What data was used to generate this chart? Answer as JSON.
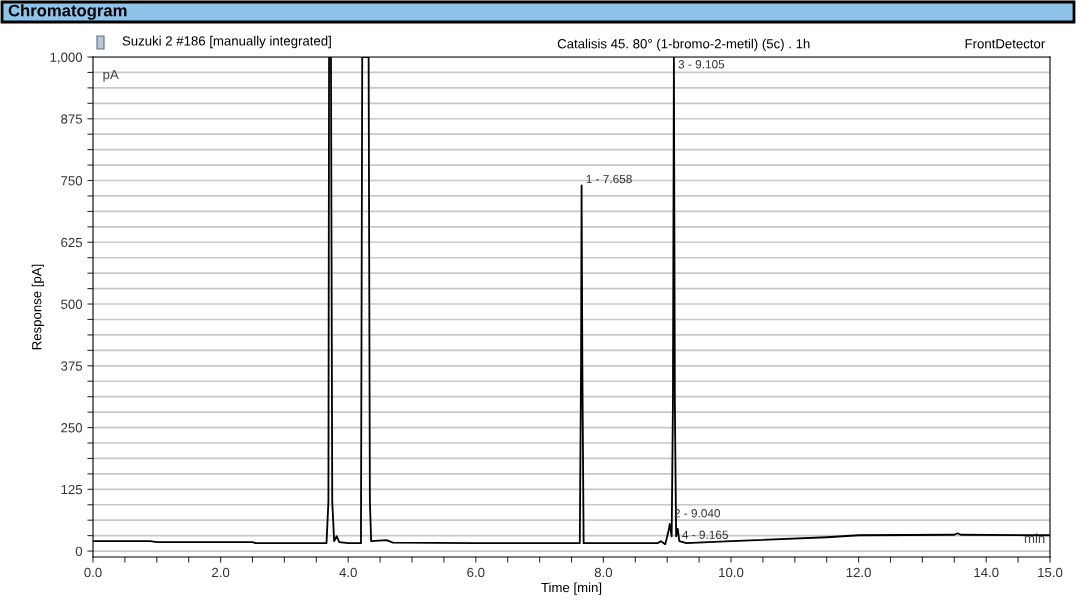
{
  "chart_data": {
    "type": "line",
    "title": "Chromatogram",
    "subtitle": "Suzuki 2 #186 [manually integrated]",
    "xlabel": "Time [min]",
    "ylabel": "Response [pA]",
    "annotations": [
      "Catalisis 45. 80° (1-bromo-2-metil) (5c) . 1h",
      "FrontDetector",
      "pA",
      "min",
      {
        "text": "1 - 7.658",
        "x": 7.658,
        "y": 740
      },
      {
        "text": "2 - 9.040",
        "x": 9.04,
        "y": 55
      },
      {
        "text": "3 - 9.105",
        "x": 9.105,
        "y": 1000
      },
      {
        "text": "4 - 9.165",
        "x": 9.165,
        "y": 45
      }
    ],
    "series": [
      {
        "color": "#000000",
        "x": [
          0,
          0.9,
          1.0,
          2.5,
          2.55,
          3.66,
          3.69,
          3.7,
          3.73,
          3.75,
          3.78,
          3.82,
          3.86,
          4.0,
          4.2,
          4.22,
          4.32,
          4.34,
          4.36,
          4.6,
          4.7,
          6.0,
          7.63,
          7.65,
          7.658,
          7.67,
          7.69,
          8.85,
          8.9,
          8.97,
          9.02,
          9.04,
          9.07,
          9.09,
          9.105,
          9.12,
          9.14,
          9.165,
          9.19,
          9.3,
          10.0,
          11.5,
          12.0,
          13.5,
          13.55,
          13.6,
          15.0
        ],
        "values": [
          20,
          20,
          18,
          18,
          16,
          16,
          100,
          1000,
          1000,
          100,
          20,
          30,
          18,
          16,
          16,
          1000,
          1000,
          100,
          20,
          22,
          17,
          16,
          16,
          380,
          740,
          380,
          16,
          16,
          20,
          14,
          40,
          55,
          30,
          300,
          1000,
          300,
          30,
          45,
          20,
          16,
          20,
          28,
          32,
          33,
          36,
          33,
          32
        ]
      }
    ],
    "xlim": [
      0,
      15
    ],
    "ylim": [
      -12,
      1000
    ],
    "xticks": [
      {
        "value": 0,
        "label": "0.0"
      },
      {
        "value": 0.5,
        "label": null
      },
      {
        "value": 1,
        "label": null
      },
      {
        "value": 1.5,
        "label": null
      },
      {
        "value": 2,
        "label": "2.0"
      },
      {
        "value": 2.5,
        "label": null
      },
      {
        "value": 3,
        "label": null
      },
      {
        "value": 3.5,
        "label": null
      },
      {
        "value": 4,
        "label": "4.0"
      },
      {
        "value": 4.5,
        "label": null
      },
      {
        "value": 5,
        "label": null
      },
      {
        "value": 5.5,
        "label": null
      },
      {
        "value": 6,
        "label": "6.0"
      },
      {
        "value": 6.5,
        "label": null
      },
      {
        "value": 7,
        "label": null
      },
      {
        "value": 7.5,
        "label": null
      },
      {
        "value": 8,
        "label": "8.0"
      },
      {
        "value": 8.5,
        "label": null
      },
      {
        "value": 9,
        "label": null
      },
      {
        "value": 9.5,
        "label": null
      },
      {
        "value": 10,
        "label": "10.0"
      },
      {
        "value": 10.5,
        "label": null
      },
      {
        "value": 11,
        "label": null
      },
      {
        "value": 11.5,
        "label": null
      },
      {
        "value": 12,
        "label": "12.0"
      },
      {
        "value": 12.5,
        "label": null
      },
      {
        "value": 13,
        "label": null
      },
      {
        "value": 13.5,
        "label": null
      },
      {
        "value": 14,
        "label": "14.0"
      },
      {
        "value": 14.5,
        "label": null
      },
      {
        "value": 15,
        "label": "15.0"
      }
    ],
    "yticks": [
      0,
      {
        "value": 31.25,
        "label": null
      },
      {
        "value": 62.5,
        "label": null
      },
      {
        "value": 93.75,
        "label": null
      },
      125,
      {
        "value": 156.25,
        "label": null
      },
      {
        "value": 187.5,
        "label": null
      },
      {
        "value": 218.75,
        "label": null
      },
      250,
      {
        "value": 281.25,
        "label": null
      },
      {
        "value": 312.5,
        "label": null
      },
      {
        "value": 343.75,
        "label": null
      },
      375,
      {
        "value": 406.25,
        "label": null
      },
      {
        "value": 437.5,
        "label": null
      },
      {
        "value": 468.75,
        "label": null
      },
      500,
      {
        "value": 531.25,
        "label": null
      },
      {
        "value": 562.5,
        "label": null
      },
      {
        "value": 593.75,
        "label": null
      },
      625,
      {
        "value": 656.25,
        "label": null
      },
      {
        "value": 687.5,
        "label": null
      },
      {
        "value": 718.75,
        "label": null
      },
      750,
      {
        "value": 781.25,
        "label": null
      },
      {
        "value": 812.5,
        "label": null
      },
      {
        "value": 843.75,
        "label": null
      },
      875,
      {
        "value": 906.25,
        "label": null
      },
      {
        "value": 937.5,
        "label": null
      },
      {
        "value": 968.75,
        "label": null
      },
      {
        "value": 1000,
        "label": "1,000"
      }
    ],
    "grid": "y",
    "legend": false,
    "marker": "none",
    "line_style": "solid"
  }
}
